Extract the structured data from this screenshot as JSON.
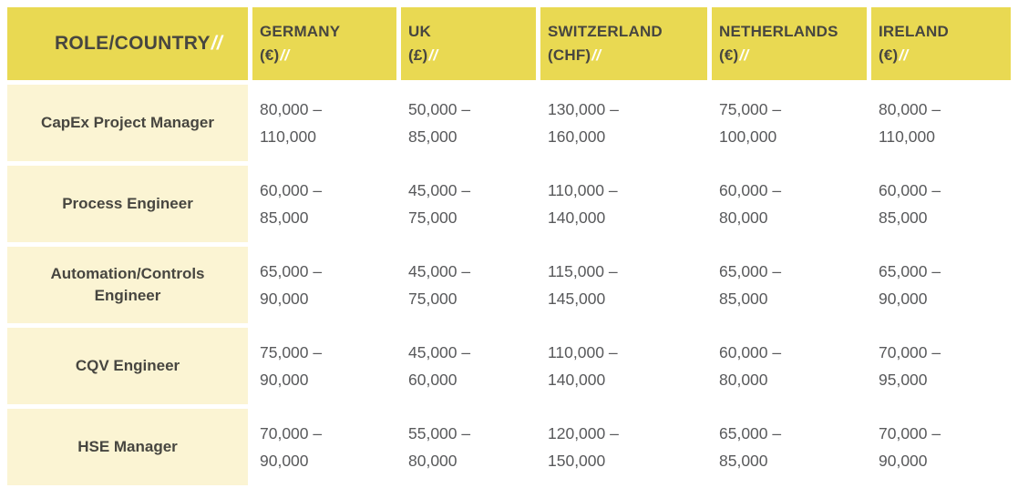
{
  "table": {
    "header": {
      "role": {
        "label": "ROLE/COUNTRY",
        "slashes": "//"
      },
      "columns": [
        {
          "name": "GERMANY",
          "currency": "(€)",
          "slashes": "//"
        },
        {
          "name": "UK",
          "currency": "(£)",
          "slashes": "//"
        },
        {
          "name": "SWITZERLAND",
          "currency": "(CHF)",
          "slashes": "//"
        },
        {
          "name": "NETHERLANDS",
          "currency": "(€)",
          "slashes": "//"
        },
        {
          "name": "IRELAND",
          "currency": "(€)",
          "slashes": "//"
        }
      ]
    },
    "rows": [
      {
        "role": "CapEx Project Manager",
        "cells": [
          [
            "80,000 –",
            "110,000"
          ],
          [
            "50,000 –",
            "85,000"
          ],
          [
            "130,000 –",
            "160,000"
          ],
          [
            "75,000 –",
            "100,000"
          ],
          [
            "80,000 –",
            "110,000"
          ]
        ]
      },
      {
        "role": "Process Engineer",
        "cells": [
          [
            "60,000 –",
            "85,000"
          ],
          [
            "45,000 –",
            "75,000"
          ],
          [
            "110,000 –",
            "140,000"
          ],
          [
            "60,000 –",
            "80,000"
          ],
          [
            "60,000 –",
            "85,000"
          ]
        ]
      },
      {
        "role": "Automation/Controls Engineer",
        "cells": [
          [
            "65,000 –",
            "90,000"
          ],
          [
            "45,000 –",
            "75,000"
          ],
          [
            "115,000 –",
            "145,000"
          ],
          [
            "65,000 –",
            "85,000"
          ],
          [
            "65,000 –",
            "90,000"
          ]
        ]
      },
      {
        "role": "CQV Engineer",
        "cells": [
          [
            "75,000 –",
            "90,000"
          ],
          [
            "45,000 –",
            "60,000"
          ],
          [
            "110,000 –",
            "140,000"
          ],
          [
            "60,000 –",
            "80,000"
          ],
          [
            "70,000 –",
            "95,000"
          ]
        ]
      },
      {
        "role": "HSE Manager",
        "cells": [
          [
            "70,000 –",
            "90,000"
          ],
          [
            "55,000 –",
            "80,000"
          ],
          [
            "120,000 –",
            "150,000"
          ],
          [
            "65,000 –",
            "85,000"
          ],
          [
            "70,000 –",
            "90,000"
          ]
        ]
      }
    ]
  },
  "colors": {
    "header_yellow": "#e9d952",
    "role_cream": "#fbf4d3",
    "header_text": "#474640",
    "data_text": "#58595b",
    "slash_white": "#ffffff"
  },
  "chart_data": {
    "type": "table",
    "title": "",
    "columns": [
      "ROLE/COUNTRY",
      "GERMANY (€)",
      "UK (£)",
      "SWITZERLAND (CHF)",
      "NETHERLANDS (€)",
      "IRELAND (€)"
    ],
    "rows": [
      [
        "CapEx Project Manager",
        "80,000 – 110,000",
        "50,000 – 85,000",
        "130,000 – 160,000",
        "75,000 – 100,000",
        "80,000 – 110,000"
      ],
      [
        "Process Engineer",
        "60,000 – 85,000",
        "45,000 – 75,000",
        "110,000 – 140,000",
        "60,000 – 80,000",
        "60,000 – 85,000"
      ],
      [
        "Automation/Controls Engineer",
        "65,000 – 90,000",
        "45,000 – 75,000",
        "115,000 – 145,000",
        "65,000 – 85,000",
        "65,000 – 90,000"
      ],
      [
        "CQV Engineer",
        "75,000 – 90,000",
        "45,000 – 60,000",
        "110,000 – 140,000",
        "60,000 – 80,000",
        "70,000 – 95,000"
      ],
      [
        "HSE Manager",
        "70,000 – 90,000",
        "55,000 – 80,000",
        "120,000 – 150,000",
        "65,000 – 85,000",
        "70,000 – 90,000"
      ]
    ]
  }
}
